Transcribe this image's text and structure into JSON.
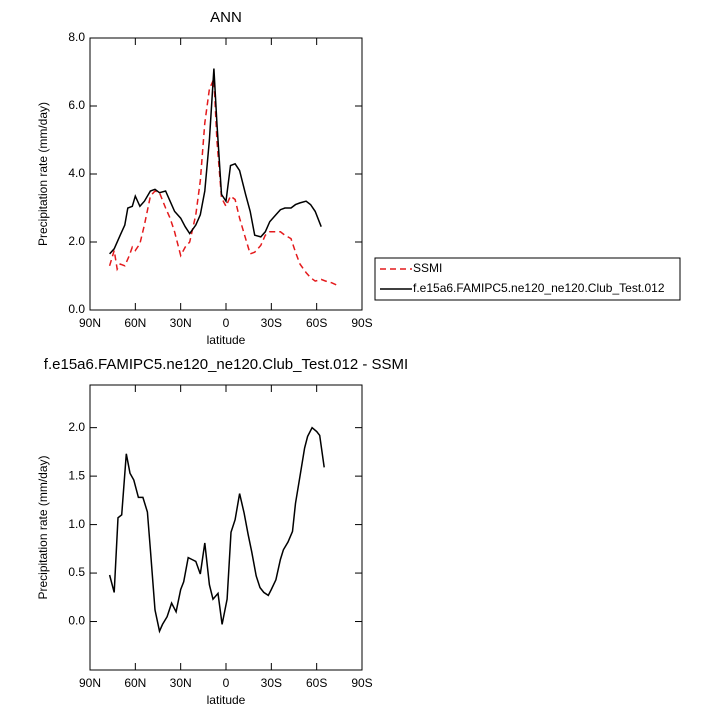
{
  "chart_data": [
    {
      "type": "line",
      "title": "ANN",
      "xlabel": "latitude",
      "ylabel": "Precipitation rate (mm/day)",
      "xlim": [
        90,
        -90
      ],
      "xticks": [
        {
          "value": 90,
          "label": "90N"
        },
        {
          "value": 60,
          "label": "60N"
        },
        {
          "value": 30,
          "label": "30N"
        },
        0,
        {
          "value": -30,
          "label": "30S"
        },
        {
          "value": -60,
          "label": "60S"
        },
        {
          "value": -90,
          "label": "90S"
        }
      ],
      "ylim": [
        0,
        8
      ],
      "yticks": [
        {
          "value": 0,
          "label": "0.0"
        },
        {
          "value": 2,
          "label": "2.0"
        },
        {
          "value": 4,
          "label": "4.0"
        },
        {
          "value": 6,
          "label": "6.0"
        },
        {
          "value": 8,
          "label": "8.0"
        }
      ],
      "legend": "right",
      "series": [
        {
          "name": "SSMI",
          "color": "#e41a1c",
          "dashed": true,
          "x": [
            77,
            74,
            72,
            70,
            67,
            64,
            62,
            60,
            57,
            54,
            50,
            47,
            44,
            40,
            37,
            34,
            30,
            27,
            24,
            20,
            17,
            14,
            11,
            8,
            6,
            3,
            0,
            -3,
            -6,
            -9,
            -13,
            -16,
            -19,
            -23,
            -26,
            -29,
            -33,
            -36,
            -39,
            -43,
            -46,
            -49,
            -53,
            -56,
            -59,
            -63,
            -66,
            -70,
            -74
          ],
          "values": [
            1.3,
            1.75,
            1.2,
            1.35,
            1.3,
            1.6,
            1.85,
            1.75,
            1.95,
            2.5,
            3.35,
            3.5,
            3.45,
            3.0,
            2.7,
            2.3,
            1.6,
            1.85,
            2.0,
            2.8,
            3.8,
            5.5,
            6.5,
            6.8,
            5.0,
            3.3,
            3.05,
            3.35,
            3.25,
            2.7,
            2.1,
            1.65,
            1.7,
            1.9,
            2.2,
            2.3,
            2.3,
            2.3,
            2.2,
            2.1,
            1.7,
            1.35,
            1.1,
            0.95,
            0.85,
            0.9,
            0.85,
            0.8,
            0.72
          ]
        },
        {
          "name": "f.e15a6.FAMIPC5.ne120_ne120.Club_Test.012",
          "color": "#000000",
          "dashed": false,
          "x": [
            77,
            74,
            70,
            67,
            65,
            62,
            60,
            57,
            54,
            50,
            47,
            44,
            40,
            37,
            34,
            30,
            27,
            24,
            20,
            17,
            14,
            11,
            8,
            6,
            3,
            0,
            -3,
            -6,
            -9,
            -13,
            -16,
            -19,
            -23,
            -26,
            -29,
            -33,
            -36,
            -39,
            -43,
            -46,
            -49,
            -53,
            -56,
            -59,
            -63
          ],
          "values": [
            1.65,
            1.8,
            2.2,
            2.5,
            3.0,
            3.05,
            3.35,
            3.05,
            3.2,
            3.5,
            3.55,
            3.45,
            3.5,
            3.2,
            2.9,
            2.7,
            2.45,
            2.25,
            2.5,
            2.8,
            3.5,
            5.0,
            7.1,
            5.5,
            3.4,
            3.2,
            4.25,
            4.3,
            4.1,
            3.4,
            2.9,
            2.2,
            2.15,
            2.3,
            2.6,
            2.8,
            2.95,
            3.0,
            3.0,
            3.1,
            3.15,
            3.2,
            3.1,
            2.9,
            2.45
          ]
        }
      ]
    },
    {
      "type": "line",
      "title": "f.e15a6.FAMIPC5.ne120_ne120.Club_Test.012 - SSMI",
      "xlabel": "latitude",
      "ylabel": "Precipitation rate (mm/day)",
      "xlim": [
        90,
        -90
      ],
      "xticks": [
        {
          "value": 90,
          "label": "90N"
        },
        {
          "value": 60,
          "label": "60N"
        },
        {
          "value": 30,
          "label": "30N"
        },
        0,
        {
          "value": -30,
          "label": "30S"
        },
        {
          "value": -60,
          "label": "60S"
        },
        {
          "value": -90,
          "label": "90S"
        }
      ],
      "ylim": [
        -0.5,
        2.44
      ],
      "yticks": [
        {
          "value": 0,
          "label": "0.0"
        },
        0.5,
        {
          "value": 1,
          "label": "1.0"
        },
        1.5,
        {
          "value": 2,
          "label": "2.0"
        }
      ],
      "series": [
        {
          "color": "#000000",
          "dashed": false,
          "x": [
            77,
            74,
            71.5,
            69,
            66,
            63.5,
            61,
            58,
            55,
            52,
            50,
            47,
            44,
            42,
            39,
            36,
            33,
            30,
            28,
            25,
            22.5,
            20,
            17,
            14,
            11,
            8.6,
            5.3,
            2.6,
            -0.7,
            -3.3,
            -6,
            -9,
            -12,
            -14.6,
            -17,
            -20,
            -22.5,
            -25,
            -28,
            -30,
            -33,
            -36,
            -38,
            -41,
            -44,
            -46,
            -49,
            -52,
            -54,
            -57,
            -60,
            -62,
            -65
          ],
          "values": [
            0.48,
            0.3,
            1.07,
            1.1,
            1.73,
            1.53,
            1.46,
            1.28,
            1.28,
            1.13,
            0.74,
            0.12,
            -0.1,
            -0.03,
            0.05,
            0.19,
            0.1,
            0.33,
            0.41,
            0.66,
            0.64,
            0.62,
            0.49,
            0.81,
            0.38,
            0.23,
            0.29,
            -0.03,
            0.23,
            0.92,
            1.05,
            1.32,
            1.12,
            0.9,
            0.72,
            0.47,
            0.35,
            0.3,
            0.27,
            0.33,
            0.43,
            0.64,
            0.74,
            0.82,
            0.93,
            1.22,
            1.5,
            1.79,
            1.91,
            2.0,
            1.96,
            1.92,
            1.59
          ]
        }
      ]
    }
  ]
}
